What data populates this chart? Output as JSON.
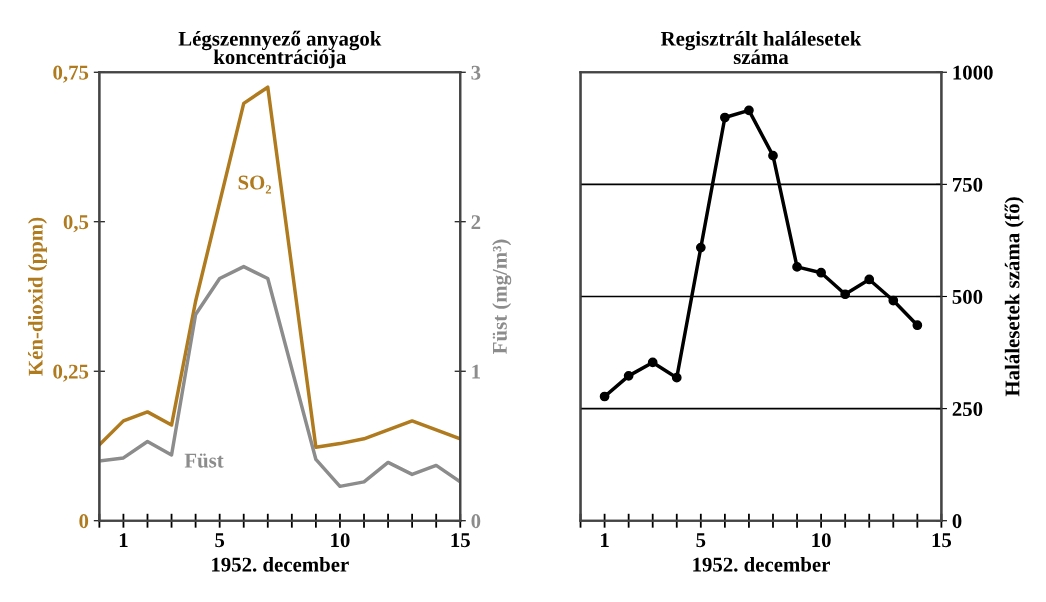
{
  "chart_data": [
    {
      "type": "line",
      "title": "Légszennyező anyagok\nkoncentrációja",
      "xlabel": "1952. december",
      "ylabel": "Kén-dioxid (ppm)",
      "y2label": "Füst (mg/m³)",
      "xlim": [
        0,
        15
      ],
      "xticks": [
        {
          "value": 0,
          "label": null
        },
        1,
        {
          "value": 2,
          "label": null
        },
        {
          "value": 3,
          "label": null
        },
        {
          "value": 4,
          "label": null
        },
        5,
        {
          "value": 6,
          "label": null
        },
        {
          "value": 7,
          "label": null
        },
        {
          "value": 8,
          "label": null
        },
        {
          "value": 9,
          "label": null
        },
        10,
        {
          "value": 11,
          "label": null
        },
        {
          "value": 12,
          "label": null
        },
        {
          "value": 13,
          "label": null
        },
        {
          "value": 14,
          "label": null
        },
        15
      ],
      "ylim": [
        0,
        0.75
      ],
      "yticks": [
        {
          "value": 0,
          "label": "0"
        },
        {
          "value": 0.25,
          "label": "0,25"
        },
        {
          "value": 0.5,
          "label": "0,5"
        },
        {
          "value": 0.75,
          "label": "0,75"
        }
      ],
      "y2lim": [
        0,
        3
      ],
      "y2ticks": [
        0,
        1,
        2,
        3
      ],
      "grid": false,
      "legend": false,
      "marker": "none",
      "line_style": "solid",
      "series": [
        {
          "name": "SO₂",
          "color": "#b07a1e",
          "x": [
            0,
            1,
            2,
            3,
            4,
            6,
            7,
            9,
            10,
            11,
            13,
            15
          ],
          "values": [
            0.127,
            0.167,
            0.182,
            0.16,
            0.367,
            0.698,
            0.725,
            0.123,
            0.129,
            0.137,
            0.167,
            0.137
          ]
        },
        {
          "name": "Füst",
          "color": "#8c8c8c",
          "axis": "y2",
          "x": [
            0,
            1,
            2,
            3,
            4,
            5,
            6,
            7,
            9,
            10,
            11,
            12,
            13,
            14,
            15
          ],
          "values": [
            0.4,
            0.42,
            0.53,
            0.44,
            1.38,
            1.62,
            1.7,
            1.62,
            0.41,
            0.23,
            0.26,
            0.39,
            0.31,
            0.37,
            0.26
          ]
        }
      ]
    },
    {
      "type": "line",
      "title": "Regisztrált halálesetek\nszáma",
      "xlabel": "1952. december",
      "y2label": "Halálesetek száma (fő)",
      "xlim": [
        0,
        15
      ],
      "xticks": [
        {
          "value": 0,
          "label": null
        },
        1,
        {
          "value": 2,
          "label": null
        },
        {
          "value": 3,
          "label": null
        },
        {
          "value": 4,
          "label": null
        },
        5,
        {
          "value": 6,
          "label": null
        },
        {
          "value": 7,
          "label": null
        },
        {
          "value": 8,
          "label": null
        },
        {
          "value": 9,
          "label": null
        },
        10,
        {
          "value": 11,
          "label": null
        },
        {
          "value": 12,
          "label": null
        },
        {
          "value": 13,
          "label": null
        },
        {
          "value": 14,
          "label": null
        },
        15
      ],
      "y2lim": [
        0,
        1000
      ],
      "y2ticks": [
        0,
        250,
        500,
        750,
        1000
      ],
      "grid": "y",
      "legend": false,
      "marker": "circle",
      "line_style": "solid",
      "series": [
        {
          "color": "#000000",
          "axis": "y2",
          "x": [
            1,
            2,
            3,
            4,
            5,
            6,
            7,
            8,
            9,
            10,
            11,
            12,
            13,
            14
          ],
          "values": [
            277,
            323,
            353,
            319,
            609,
            899,
            915,
            814,
            566,
            553,
            505,
            538,
            491,
            436
          ]
        }
      ]
    }
  ]
}
